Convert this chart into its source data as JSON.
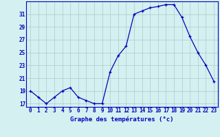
{
  "hours": [
    0,
    1,
    2,
    3,
    4,
    5,
    6,
    7,
    8,
    9,
    10,
    11,
    12,
    13,
    14,
    15,
    16,
    17,
    18,
    19,
    20,
    21,
    22,
    23
  ],
  "temps": [
    19,
    18,
    17,
    18,
    19,
    19.5,
    18,
    17.5,
    17,
    17,
    22,
    24.5,
    26,
    31,
    31.5,
    32,
    32.2,
    32.5,
    32.5,
    30.5,
    27.5,
    25,
    23,
    20.5
  ],
  "line_color": "#0000bb",
  "marker": "+",
  "bg_color": "#d5f0f0",
  "grid_color": "#aacaca",
  "axis_color": "#0000bb",
  "xlabel": "Graphe des températures (°c)",
  "ylim": [
    16.5,
    33.0
  ],
  "yticks": [
    17,
    19,
    21,
    23,
    25,
    27,
    29,
    31
  ],
  "xlim": [
    -0.5,
    23.5
  ],
  "xticks": [
    0,
    1,
    2,
    3,
    4,
    5,
    6,
    7,
    8,
    9,
    10,
    11,
    12,
    13,
    14,
    15,
    16,
    17,
    18,
    19,
    20,
    21,
    22,
    23
  ],
  "tick_fontsize": 5.5,
  "xlabel_fontsize": 6.5
}
